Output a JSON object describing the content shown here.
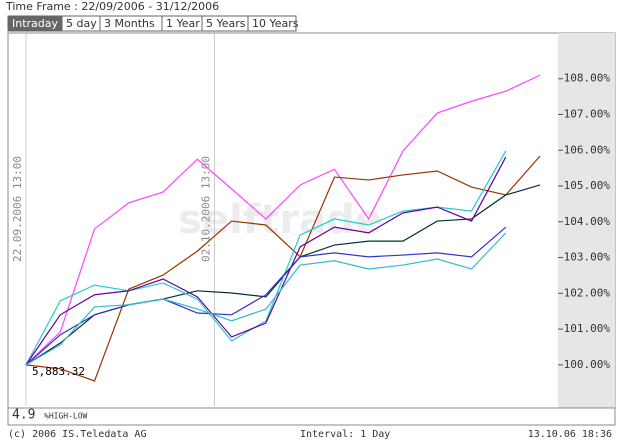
{
  "header": {
    "time_frame": "Time Frame : 22/09/2006 - 31/12/2006",
    "tabs": [
      "Intraday",
      "5 day",
      "3 Months",
      "1 Year",
      "5 Years",
      "10 Years"
    ],
    "active_tab": 0
  },
  "chart_data": {
    "type": "line",
    "categories": [
      null,
      null,
      null,
      null,
      null,
      null,
      null,
      null,
      null,
      null,
      null,
      null,
      null,
      null,
      null,
      null
    ],
    "series": [
      {
        "color": "#ff44ff",
        "values": [
          100,
          100.92,
          103.8,
          104.53,
          104.83,
          105.75,
          104.92,
          104.08,
          105.03,
          105.47,
          104.08,
          105.98,
          107.04,
          107.37,
          107.65,
          108.1
        ]
      },
      {
        "color": "#993300",
        "values": [
          100,
          99.89,
          99.55,
          102.12,
          102.51,
          103.18,
          104.02,
          103.91,
          103.02,
          105.25,
          105.17,
          105.31,
          105.42,
          104.97,
          104.75,
          105.84
        ]
      },
      {
        "color": "#003333",
        "values": [
          100,
          100.61,
          101.4,
          101.68,
          101.84,
          102.07,
          102.01,
          101.9,
          103.02,
          103.35,
          103.46,
          103.46,
          104.02,
          104.08,
          104.75,
          105.03
        ]
      },
      {
        "color": "#22cccc",
        "values": [
          100,
          101.79,
          102.23,
          102.07,
          102.29,
          101.84,
          100.67,
          101.23,
          103.63,
          104.08,
          103.91,
          104.3,
          104.41,
          104.3,
          105.98,
          null
        ]
      },
      {
        "color": "#660099",
        "values": [
          100,
          101.4,
          101.96,
          102.07,
          102.4,
          101.9,
          100.78,
          101.17,
          103.3,
          103.85,
          103.69,
          104.25,
          104.41,
          104.02,
          105.81,
          null
        ]
      },
      {
        "color": "#3333cc",
        "values": [
          100,
          100.84,
          101.4,
          101.68,
          101.84,
          101.45,
          101.4,
          101.96,
          103.02,
          103.13,
          103.02,
          103.07,
          103.13,
          103.02,
          103.85,
          null
        ]
      },
      {
        "color": "#33bbcc",
        "values": [
          100,
          100.56,
          101.62,
          101.68,
          101.84,
          101.56,
          101.23,
          101.56,
          102.79,
          102.91,
          102.68,
          102.79,
          102.96,
          102.68,
          103.69,
          null
        ]
      }
    ],
    "ylim": [
      98.85,
      109.25
    ],
    "yticks": [
      {
        "value": 100,
        "label": "100.00%"
      },
      {
        "value": 101,
        "label": "101.00%"
      },
      {
        "value": 102,
        "label": "102.00%"
      },
      {
        "value": 103,
        "label": "103.00%"
      },
      {
        "value": 104,
        "label": "104.00%"
      },
      {
        "value": 105,
        "label": "105.00%"
      },
      {
        "value": 106,
        "label": "106.00%"
      },
      {
        "value": 107,
        "label": "107.00%"
      },
      {
        "value": 108,
        "label": "108.00%"
      }
    ],
    "markers": [
      {
        "label": "22.09.2006 13:00",
        "x": 0
      },
      {
        "label": "02.10.2006 13:00",
        "x": 5.5
      }
    ],
    "base_label": "5,883.32",
    "watermark": "selftrade",
    "indicator_value": "4.9",
    "indicator_label": "%HIGH-LOW"
  },
  "footer": {
    "copyright": "(c) 2006 IS.Teledata AG",
    "interval": "Interval: 1 Day",
    "timestamp": "13.10.06 18:36"
  }
}
